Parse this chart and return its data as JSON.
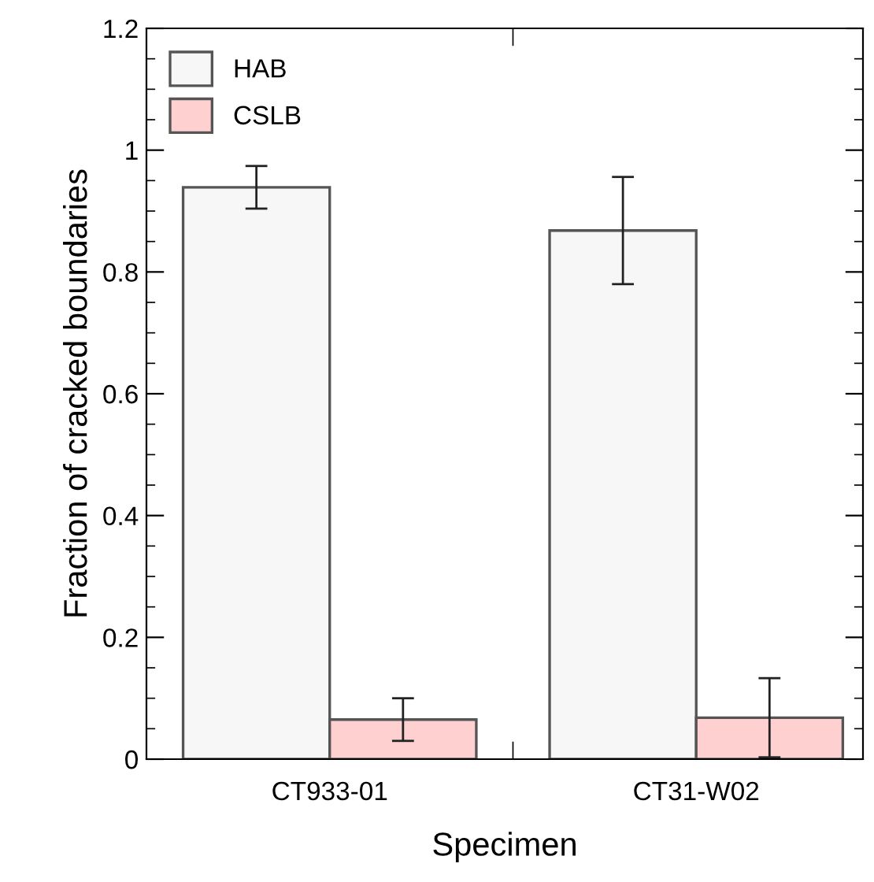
{
  "chart_data": {
    "type": "bar",
    "xlabel": "Specimen",
    "ylabel": "Fraction of cracked boundaries",
    "categories": [
      "CT933-01",
      "CT31-W02"
    ],
    "series": [
      {
        "name": "HAB",
        "color": "#f7f7f7",
        "values": [
          0.939,
          0.868
        ],
        "errors": [
          0.035,
          0.088
        ]
      },
      {
        "name": "CSLB",
        "color": "#ffd0d0",
        "values": [
          0.065,
          0.068
        ],
        "errors": [
          0.035,
          0.065
        ]
      }
    ],
    "ylim": [
      0,
      1.2
    ],
    "yticks": [
      0,
      0.2,
      0.4,
      0.6,
      0.8,
      1,
      1.2
    ],
    "grid": false,
    "legend": "top left"
  }
}
